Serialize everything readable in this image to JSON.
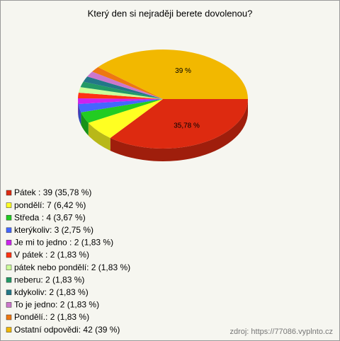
{
  "chart_data": {
    "type": "pie",
    "title": "Který den si nejraději berete dovolenou?",
    "categories": [
      "Pátek : 39 (35,78 %)",
      "pondělí: 7 (6,42 %)",
      "Středa : 4 (3,67 %)",
      "kterýkoliv: 3 (2,75 %)",
      "Je mi to jedno : 2 (1,83 %)",
      "V pátek : 2 (1,83 %)",
      "pátek nebo pondělí: 2 (1,83 %)",
      "neberu: 2 (1,83 %)",
      "kdykoliv: 2 (1,83 %)",
      "To je jedno: 2 (1,83 %)",
      "Pondělí.: 2 (1,83 %)",
      "Ostatní odpovědi: 42 (39 %)"
    ],
    "values": [
      35.78,
      6.42,
      3.67,
      2.75,
      1.83,
      1.83,
      1.83,
      1.83,
      1.83,
      1.83,
      1.83,
      39
    ],
    "value_labels": [
      "35,78 %",
      null,
      null,
      null,
      null,
      null,
      null,
      null,
      null,
      null,
      null,
      "39 %"
    ],
    "colors": [
      "#dd2a10",
      "#ffff22",
      "#22cc22",
      "#4466ff",
      "#cc22ee",
      "#ff3311",
      "#ccff99",
      "#229966",
      "#227788",
      "#cc77cc",
      "#ee7711",
      "#f2b800"
    ],
    "source": "zdroj: https://77086.vyplnto.cz"
  }
}
